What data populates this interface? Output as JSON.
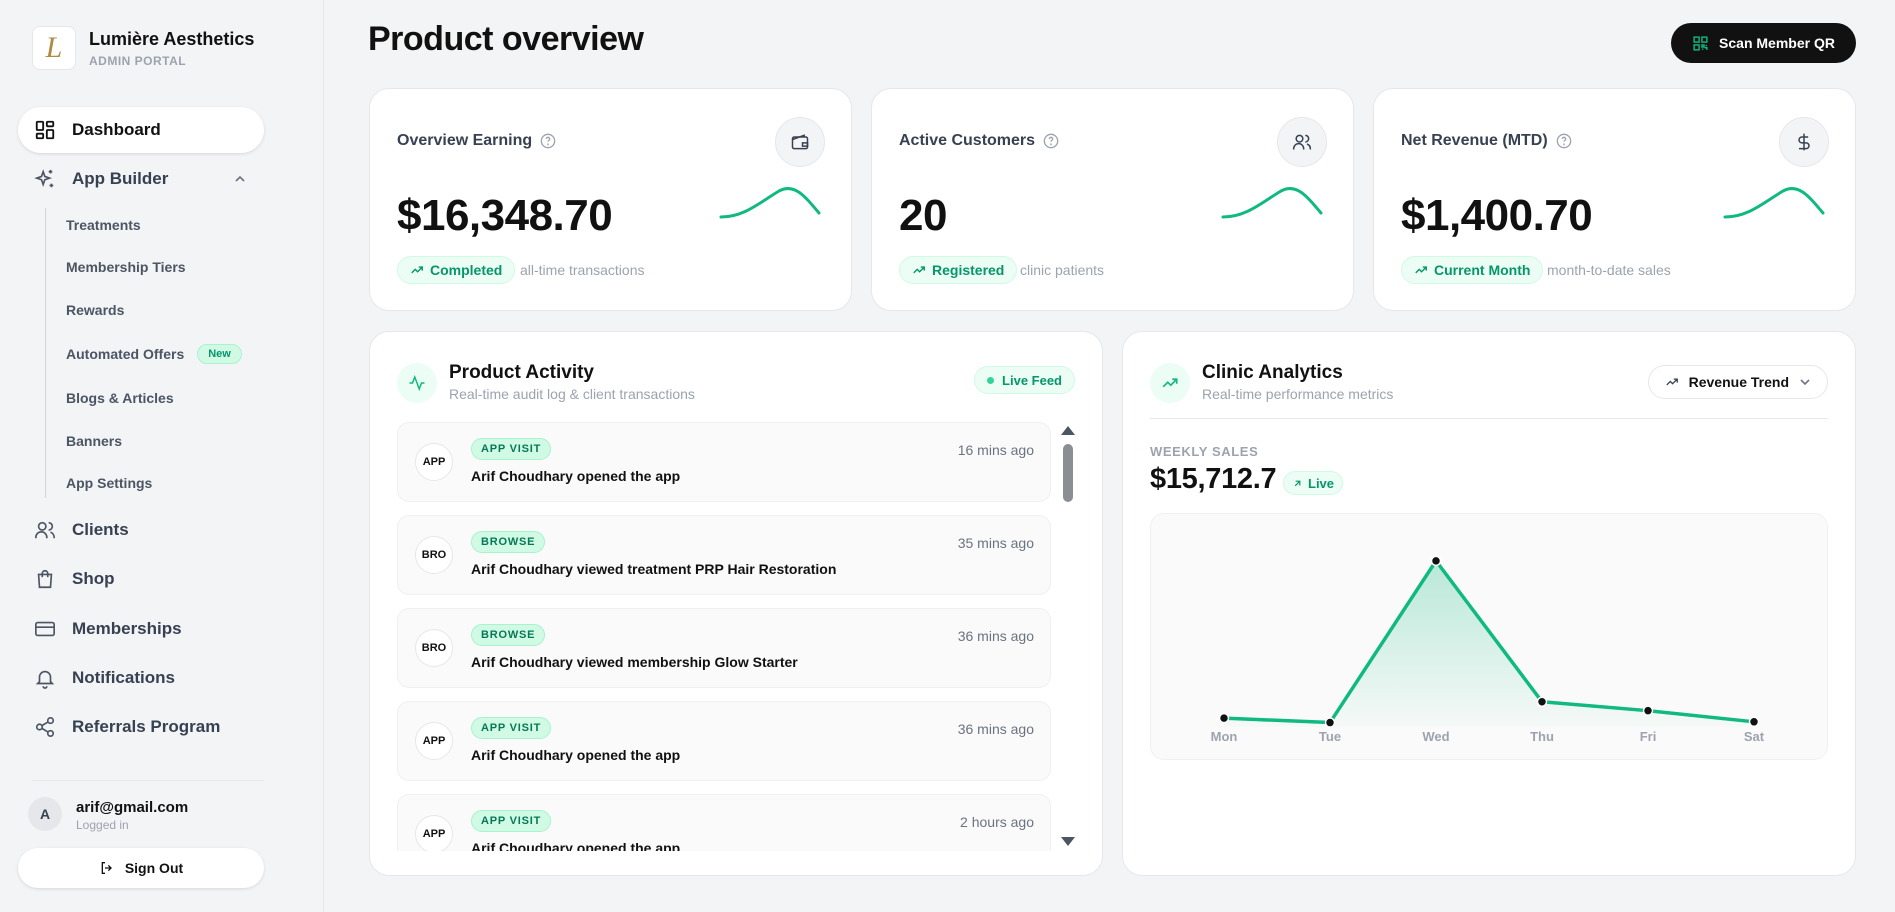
{
  "brand": {
    "name": "Lumière Aesthetics",
    "subtitle": "ADMIN PORTAL",
    "logo_letter": "L"
  },
  "sidebar": {
    "items": [
      {
        "label": "Dashboard",
        "icon": "dashboard-icon",
        "active": true
      },
      {
        "label": "App Builder",
        "icon": "sparkles-icon",
        "expanded": true
      },
      {
        "label": "Clients",
        "icon": "users-icon"
      },
      {
        "label": "Shop",
        "icon": "shopping-bag-icon"
      },
      {
        "label": "Memberships",
        "icon": "credit-card-icon"
      },
      {
        "label": "Notifications",
        "icon": "bell-icon"
      },
      {
        "label": "Referrals Program",
        "icon": "share-icon"
      }
    ],
    "app_builder_children": [
      {
        "label": "Treatments"
      },
      {
        "label": "Membership Tiers"
      },
      {
        "label": "Rewards"
      },
      {
        "label": "Automated Offers",
        "badge": "New"
      },
      {
        "label": "Blogs & Articles"
      },
      {
        "label": "Banners"
      },
      {
        "label": "App Settings"
      }
    ]
  },
  "user": {
    "initial": "A",
    "email": "arif@gmail.com",
    "status": "Logged in",
    "signout_label": "Sign Out"
  },
  "header": {
    "title": "Product overview",
    "scan_label": "Scan Member QR"
  },
  "stats": [
    {
      "title": "Overview Earning",
      "value": "$16,348.70",
      "pill": "Completed",
      "desc": "all-time transactions",
      "icon": "wallet-icon"
    },
    {
      "title": "Active Customers",
      "value": "20",
      "pill": "Registered",
      "desc": "clinic patients",
      "icon": "users-icon"
    },
    {
      "title": "Net Revenue (MTD)",
      "value": "$1,400.70",
      "pill": "Current Month",
      "desc": "month-to-date sales",
      "icon": "dollar-icon"
    }
  ],
  "activity": {
    "title": "Product Activity",
    "subtitle": "Real-time audit log & client transactions",
    "live_label": "Live Feed",
    "items": [
      {
        "avatar": "APP",
        "badge": "APP VISIT",
        "text": "Arif Choudhary opened the app",
        "time": "16 mins ago"
      },
      {
        "avatar": "BRO",
        "badge": "BROWSE",
        "text": "Arif Choudhary viewed treatment PRP Hair Restoration",
        "time": "35 mins ago"
      },
      {
        "avatar": "BRO",
        "badge": "BROWSE",
        "text": "Arif Choudhary viewed membership Glow Starter",
        "time": "36 mins ago"
      },
      {
        "avatar": "APP",
        "badge": "APP VISIT",
        "text": "Arif Choudhary opened the app",
        "time": "36 mins ago"
      },
      {
        "avatar": "APP",
        "badge": "APP VISIT",
        "text": "Arif Choudhary opened the app",
        "time": "2 hours ago"
      }
    ]
  },
  "analytics": {
    "title": "Clinic Analytics",
    "subtitle": "Real-time performance metrics",
    "dropdown_label": "Revenue Trend",
    "weekly_label": "WEEKLY SALES",
    "weekly_value": "$15,712.7",
    "live_label": "Live"
  },
  "chart_data": {
    "type": "area",
    "categories": [
      "Mon",
      "Tue",
      "Wed",
      "Thu",
      "Fri",
      "Sat"
    ],
    "values": [
      600,
      300,
      11200,
      1700,
      1100,
      350
    ],
    "ylim": [
      0,
      12000
    ],
    "grid": false,
    "color": "#10b981"
  },
  "colors": {
    "accent": "#10b981",
    "accent_light": "#ecfdf5",
    "dark": "#111111"
  }
}
